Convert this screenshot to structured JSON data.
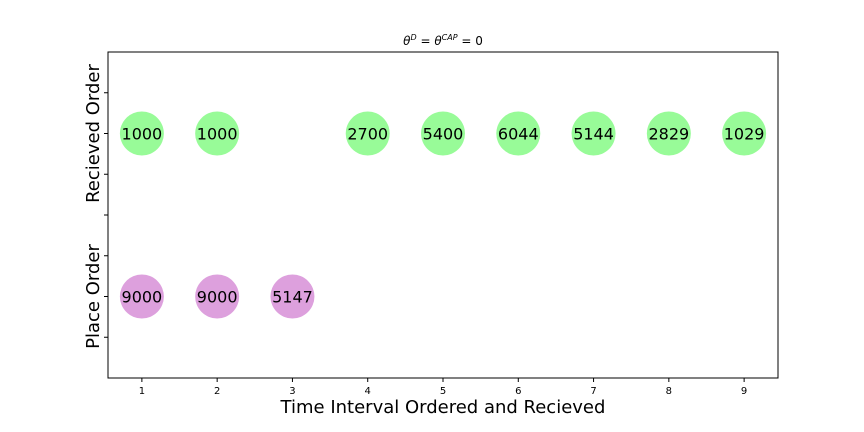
{
  "chart_data": {
    "type": "scatter",
    "title_parts": {
      "theta1": "θ",
      "sup1": "D",
      "eq1": " = ",
      "theta2": "θ",
      "sup2": "CAP",
      "eq2": " = 0"
    },
    "xlabel": "Time Interval Ordered and Recieved",
    "xlim": [
      0.55,
      9.45
    ],
    "ylim": [
      -0.5,
      1.5
    ],
    "x_ticks": [
      1,
      2,
      3,
      4,
      5,
      6,
      7,
      8,
      9
    ],
    "x_tick_labels": [
      "1",
      "2",
      "3",
      "4",
      "5",
      "6",
      "7",
      "8",
      "9"
    ],
    "y_ticks": [
      -0.25,
      0,
      0.25,
      0.5,
      0.75,
      1,
      1.25
    ],
    "y_category_labels": [
      {
        "label": "Place Order",
        "y": 0
      },
      {
        "label": "Recieved Order",
        "y": 1
      }
    ],
    "series": [
      {
        "color": "#98fb98",
        "y": 1,
        "points": [
          {
            "x": 1,
            "label": "1000"
          },
          {
            "x": 2,
            "label": "1000"
          },
          {
            "x": 4,
            "label": "2700"
          },
          {
            "x": 5,
            "label": "5400"
          },
          {
            "x": 6,
            "label": "6044"
          },
          {
            "x": 7,
            "label": "5144"
          },
          {
            "x": 8,
            "label": "2829"
          },
          {
            "x": 9,
            "label": "1029"
          }
        ]
      },
      {
        "color": "#dda0dd",
        "y": 0,
        "points": [
          {
            "x": 1,
            "label": "9000"
          },
          {
            "x": 2,
            "label": "9000"
          },
          {
            "x": 3,
            "label": "5147"
          }
        ]
      }
    ]
  }
}
